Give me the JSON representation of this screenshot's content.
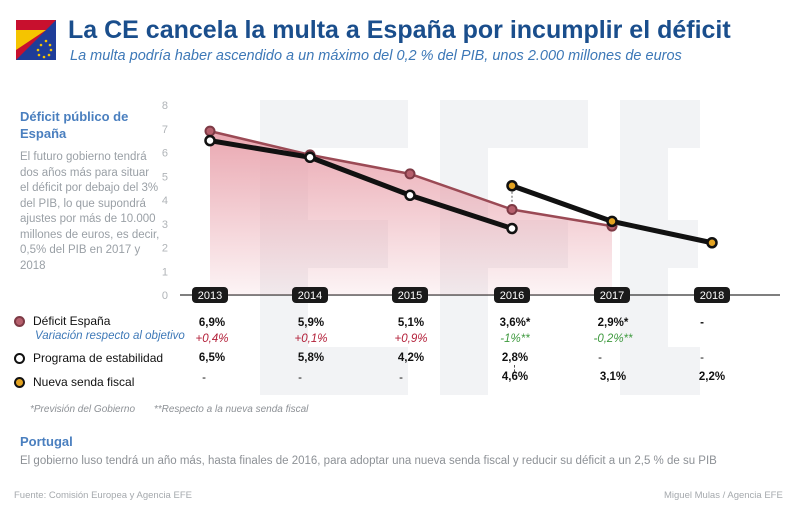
{
  "header": {
    "title": "La CE cancela la multa a España por incumplir el déficit",
    "subtitle": "La multa podría haber ascendido a un máximo del 0,2 % del PIB, unos 2.000 millones de euros",
    "flag_icon": "spain-eu-flag-icon"
  },
  "sidebar": {
    "heading": "Déficit público de España",
    "text": "El futuro gobierno tendrá dos años más para situar el déficit por debajo del 3% del PIB, lo que supondrá ajustes por más de 10.000 millones de euros, es decir, 0,5% del PIB en 2017 y 2018"
  },
  "colors": {
    "title": "#1a4e8c",
    "accent_blue": "#3d78b7",
    "deficit_line": "#9b4a55",
    "deficit_fill": "#e9a3ad",
    "stability_line": "#111111",
    "senda_marker": "#e3a321",
    "positive_var": "#b31f38",
    "negative_var": "#3f9a3f",
    "year_badge": "#1a1a1a"
  },
  "chart_data": {
    "type": "line",
    "x": [
      "2013",
      "2014",
      "2015",
      "2016",
      "2017",
      "2018"
    ],
    "series": [
      {
        "name": "Déficit España",
        "style": "area",
        "values": [
          6.9,
          5.9,
          5.1,
          3.6,
          2.9,
          null
        ]
      },
      {
        "name": "Programa de estabilidad",
        "style": "line",
        "values": [
          6.5,
          5.8,
          4.2,
          2.8,
          null,
          null
        ]
      },
      {
        "name": "Nueva senda fiscal",
        "style": "line",
        "values": [
          null,
          null,
          null,
          4.6,
          3.1,
          2.2
        ]
      }
    ],
    "ylim": [
      0,
      8
    ],
    "yticks": [
      "0",
      "1",
      "2",
      "3",
      "4",
      "5",
      "6",
      "7",
      "8"
    ],
    "xlabel": "",
    "ylabel": ""
  },
  "table": {
    "rows": [
      {
        "label": "Déficit España",
        "marker": "deficit",
        "cells": [
          "6,9%",
          "5,9%",
          "5,1%",
          "3,6%*",
          "2,9%*",
          "-"
        ]
      },
      {
        "label": "Variación respecto al objetivo",
        "marker": "none",
        "cells": [
          "+0,4%",
          "+0,1%",
          "+0,9%",
          "-1%**",
          "-0,2%**",
          ""
        ]
      },
      {
        "label": "Programa de estabilidad",
        "marker": "stability",
        "cells": [
          "6,5%",
          "5,8%",
          "4,2%",
          "2,8%",
          "-",
          "-"
        ]
      },
      {
        "label": "Nueva senda fiscal",
        "marker": "senda",
        "cells": [
          "-",
          "-",
          "-",
          "4,6%",
          "3,1%",
          "2,2%"
        ]
      }
    ]
  },
  "notes": {
    "note1": "*Previsión del Gobierno",
    "note2": "**Respecto a la nueva senda fiscal"
  },
  "portugal": {
    "heading": "Portugal",
    "text": "El gobierno luso tendrá un año más, hasta finales de 2016, para adoptar una nueva senda fiscal y reducir su déficit a un 2,5 % de su PIB"
  },
  "footer": {
    "source": "Fuente: Comisión Europea y Agencia EFE",
    "credit": "Miguel Mulas / Agencia EFE"
  }
}
